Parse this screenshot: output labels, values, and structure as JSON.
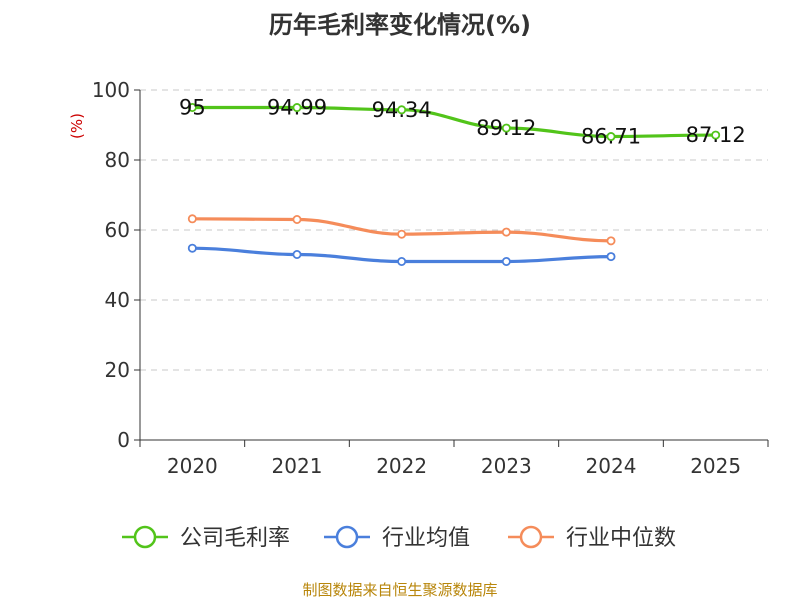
{
  "chart_data": {
    "type": "line",
    "title": "历年毛利率变化情况(%)",
    "ylabel": "(%)",
    "xlabel": "",
    "categories": [
      "2020",
      "2021",
      "2022",
      "2023",
      "2024",
      "2025"
    ],
    "ylim": [
      0,
      100
    ],
    "yticks": [
      0,
      20,
      40,
      60,
      80,
      100
    ],
    "grid": true,
    "legend": "bottom",
    "series": [
      {
        "name": "公司毛利率",
        "color": "#52c41a",
        "values": [
          95,
          94.99,
          94.34,
          89.12,
          86.71,
          87.12
        ],
        "labels": [
          "95",
          "94.99",
          "94.34",
          "89.12",
          "86.71",
          "87.12"
        ]
      },
      {
        "name": "行业均值",
        "color": "#4a7fdc",
        "values": [
          54.8,
          53.0,
          51.0,
          51.0,
          52.4,
          null
        ]
      },
      {
        "name": "行业中位数",
        "color": "#f58c5a",
        "values": [
          63.2,
          63.0,
          58.8,
          59.4,
          56.9,
          null
        ]
      }
    ],
    "source": "制图数据来自恒生聚源数据库"
  }
}
